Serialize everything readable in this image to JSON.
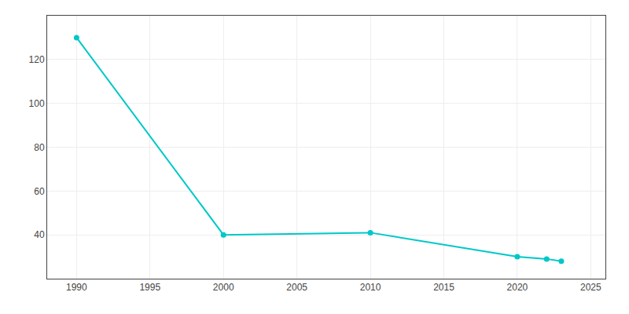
{
  "chart_data": {
    "type": "line",
    "x": [
      1990,
      2000,
      2010,
      2020,
      2022,
      2023
    ],
    "values": [
      130,
      40,
      41,
      30,
      29,
      28
    ],
    "color": "#00C8C8",
    "marker": "circle",
    "xlim": [
      1988,
      2026
    ],
    "ylim": [
      20,
      140
    ],
    "xticks": [
      1990,
      1995,
      2000,
      2005,
      2010,
      2015,
      2020,
      2025
    ],
    "yticks": [
      40,
      60,
      80,
      100,
      120
    ],
    "grid": true
  }
}
